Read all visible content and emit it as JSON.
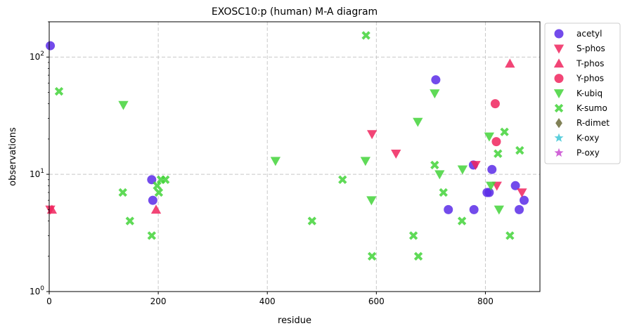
{
  "chart_data": {
    "type": "scatter",
    "title": "EXOSC10:p (human) M-A diagram",
    "xlabel": "residue",
    "ylabel": "observations",
    "xlim": [
      0,
      900
    ],
    "ylim": [
      1,
      200
    ],
    "yscale": "log",
    "xticks": [
      0,
      200,
      400,
      600,
      800
    ],
    "xtick_labels": [
      "0",
      "200",
      "400",
      "600",
      "800"
    ],
    "yticks": [
      1,
      10,
      100
    ],
    "grid": true,
    "legend_position": "outside-right",
    "series": [
      {
        "name": "acetyl",
        "marker": "circle",
        "color": "#5b2be8",
        "points": [
          [
            2,
            125
          ],
          [
            188,
            9
          ],
          [
            190,
            6
          ],
          [
            709,
            64
          ],
          [
            732,
            5
          ],
          [
            778,
            12
          ],
          [
            779,
            5
          ],
          [
            803,
            7
          ],
          [
            807,
            7
          ],
          [
            812,
            11
          ],
          [
            855,
            8
          ],
          [
            862,
            5
          ],
          [
            871,
            6
          ]
        ]
      },
      {
        "name": "S-phos",
        "marker": "triangle-down",
        "color": "#f0245e",
        "points": [
          [
            2,
            5
          ],
          [
            592,
            22
          ],
          [
            636,
            15
          ],
          [
            782,
            12
          ],
          [
            821,
            8
          ],
          [
            867,
            7
          ]
        ]
      },
      {
        "name": "T-phos",
        "marker": "triangle-up",
        "color": "#f0245e",
        "points": [
          [
            5,
            5
          ],
          [
            196,
            5
          ],
          [
            845,
            88
          ]
        ]
      },
      {
        "name": "Y-phos",
        "marker": "circle",
        "color": "#f0245e",
        "points": [
          [
            818,
            40
          ],
          [
            820,
            19
          ]
        ]
      },
      {
        "name": "K-ubiq",
        "marker": "triangle-down",
        "color": "#43d43a",
        "points": [
          [
            136,
            39
          ],
          [
            415,
            13
          ],
          [
            580,
            13
          ],
          [
            591,
            6
          ],
          [
            676,
            28
          ],
          [
            707,
            49
          ],
          [
            716,
            10
          ],
          [
            758,
            11
          ],
          [
            807,
            21
          ],
          [
            810,
            8
          ],
          [
            825,
            5
          ]
        ]
      },
      {
        "name": "K-sumo",
        "marker": "x",
        "color": "#43d43a",
        "points": [
          [
            18,
            51
          ],
          [
            135,
            7
          ],
          [
            148,
            4
          ],
          [
            188,
            3
          ],
          [
            198,
            8
          ],
          [
            201,
            7
          ],
          [
            205,
            9
          ],
          [
            213,
            9
          ],
          [
            482,
            4
          ],
          [
            538,
            9
          ],
          [
            581,
            153
          ],
          [
            592,
            2
          ],
          [
            668,
            3
          ],
          [
            677,
            2
          ],
          [
            707,
            12
          ],
          [
            723,
            7
          ],
          [
            757,
            4
          ],
          [
            823,
            15
          ],
          [
            835,
            23
          ],
          [
            845,
            3
          ],
          [
            863,
            16
          ]
        ]
      },
      {
        "name": "R-dimet",
        "marker": "diamond",
        "color": "#6b6b3a",
        "points": []
      },
      {
        "name": "K-oxy",
        "marker": "star",
        "color": "#3ec7d6",
        "points": []
      },
      {
        "name": "P-oxy",
        "marker": "star",
        "color": "#c94ad1",
        "points": []
      }
    ]
  }
}
